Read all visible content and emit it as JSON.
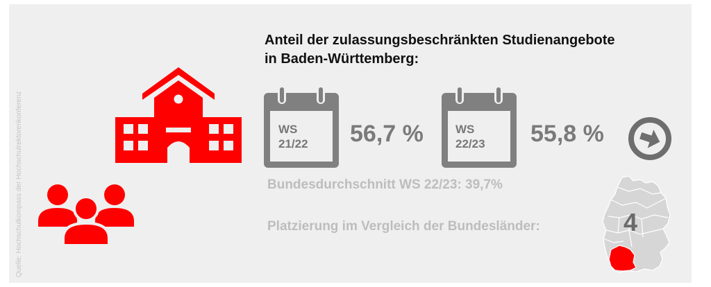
{
  "source": "Quelle: Hochschulkompass der Hochschulrektorenkonferenz",
  "title": {
    "line1": "Anteil der zulassungsbeschränkten Studienangebote",
    "line2": "in Baden-Württemberg:"
  },
  "semesters": [
    {
      "label1": "WS",
      "label2": "21/22",
      "percent": "56,7 %"
    },
    {
      "label1": "WS",
      "label2": "22/23",
      "percent": "55,8 %"
    }
  ],
  "national_average": "Bundesdurchschnitt WS 22/23: 39,7%",
  "ranking": {
    "label": "Platzierung im Vergleich der Bundesländer:",
    "value": "4"
  },
  "icons": {
    "university": "university-building-icon",
    "students": "student-group-icon",
    "calendar": "calendar-icon",
    "trend": "arrow-right-circle-icon",
    "map": "germany-map-icon"
  },
  "colors": {
    "accent": "#ff0000",
    "icon_grey": "#808080",
    "light_grey_text": "#bdbdbd",
    "map_fill": "#d6d6d6"
  }
}
